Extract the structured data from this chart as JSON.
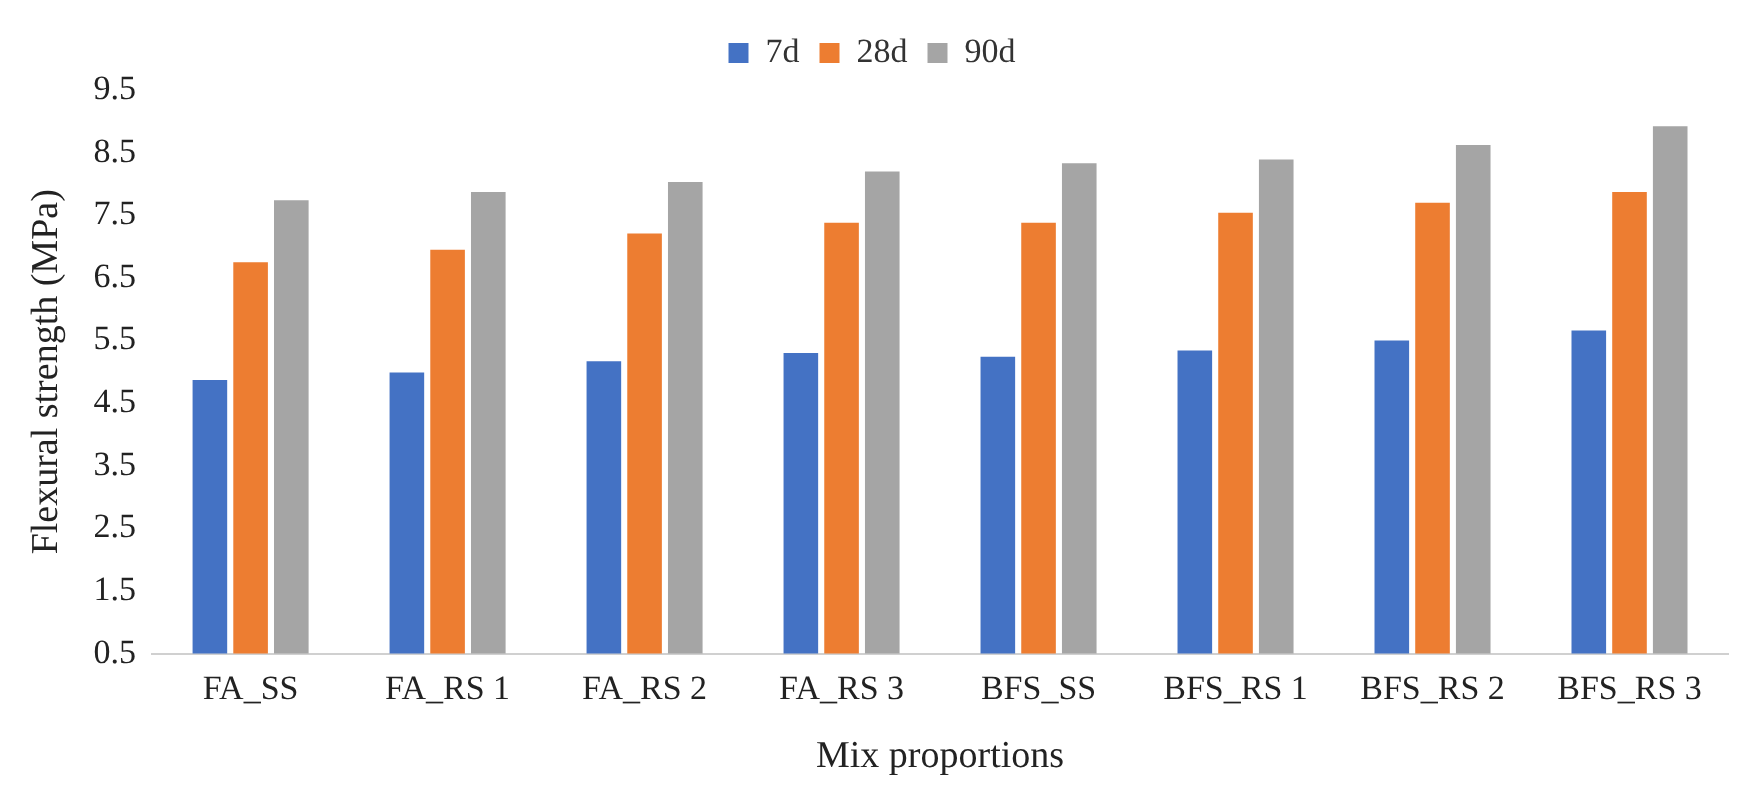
{
  "chart_data": {
    "type": "bar",
    "xlabel": "Mix proportions",
    "ylabel": "Flexural strength (MPa)",
    "categories": [
      "FA_SS",
      "FA_RS 1",
      "FA_RS 2",
      "FA_RS 3",
      "BFS_SS",
      "BFS_RS 1",
      "BFS_RS 2",
      "BFS_RS 3"
    ],
    "series": [
      {
        "name": "7d",
        "color": "#4472c4",
        "values": [
          4.87,
          4.99,
          5.17,
          5.3,
          5.24,
          5.34,
          5.5,
          5.66
        ]
      },
      {
        "name": "28d",
        "color": "#ed7d31",
        "values": [
          6.75,
          6.95,
          7.21,
          7.38,
          7.38,
          7.54,
          7.7,
          7.87
        ]
      },
      {
        "name": "90d",
        "color": "#a5a5a5",
        "values": [
          7.74,
          7.87,
          8.03,
          8.2,
          8.33,
          8.39,
          8.62,
          8.92
        ]
      }
    ],
    "ylim": [
      0.5,
      9.5
    ],
    "yticks": [
      0.5,
      1.5,
      2.5,
      3.5,
      4.5,
      5.5,
      6.5,
      7.5,
      8.5,
      9.5
    ],
    "grid": false,
    "legend": "top"
  }
}
